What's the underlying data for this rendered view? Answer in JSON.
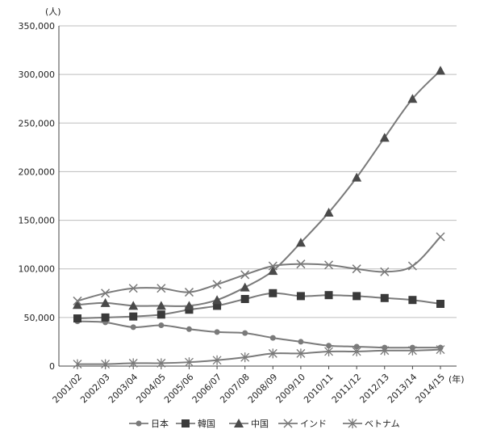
{
  "chart_data": {
    "type": "line",
    "title": "",
    "xlabel": "",
    "ylabel": "",
    "y_unit": "(人)",
    "x_unit": "(年)",
    "ylim": [
      0,
      350000
    ],
    "yticks": [
      0,
      50000,
      100000,
      150000,
      200000,
      250000,
      300000,
      350000
    ],
    "ytick_labels": [
      "0",
      "50,000",
      "100,000",
      "150,000",
      "200,000",
      "250,000",
      "300,000",
      "350,000"
    ],
    "grid": "horizontal",
    "legend_position": "bottom",
    "categories": [
      "2001/02",
      "2002/03",
      "2003/04",
      "2004/05",
      "2005/06",
      "2006/07",
      "2007/08",
      "2008/09",
      "2009/10",
      "2010/11",
      "2011/12",
      "2012/13",
      "2013/14",
      "2014/15"
    ],
    "series": [
      {
        "name": "日本",
        "marker": "circle",
        "color": "#7a7a7a",
        "values": [
          46000,
          45000,
          40000,
          42000,
          38000,
          35000,
          34000,
          29000,
          25000,
          21000,
          20000,
          19000,
          19000,
          19000
        ]
      },
      {
        "name": "韓国",
        "marker": "square",
        "color": "#7a7a7a",
        "values": [
          49000,
          50000,
          51000,
          53000,
          58000,
          62000,
          69000,
          75000,
          72000,
          73000,
          72000,
          70000,
          68000,
          64000
        ]
      },
      {
        "name": "中国",
        "marker": "triangle",
        "color": "#7a7a7a",
        "values": [
          63000,
          65000,
          62000,
          62000,
          62000,
          68000,
          81000,
          98000,
          127000,
          158000,
          194000,
          235000,
          275000,
          304000
        ]
      },
      {
        "name": "インド",
        "marker": "x",
        "color": "#7a7a7a",
        "values": [
          67000,
          75000,
          80000,
          80000,
          76000,
          84000,
          94000,
          103000,
          105000,
          104000,
          100000,
          97000,
          103000,
          133000
        ]
      },
      {
        "name": "ベトナム",
        "marker": "star",
        "color": "#7a7a7a",
        "values": [
          2000,
          2000,
          3000,
          3000,
          4000,
          6000,
          9000,
          13000,
          13000,
          15000,
          15000,
          16000,
          16000,
          17000
        ]
      }
    ]
  }
}
